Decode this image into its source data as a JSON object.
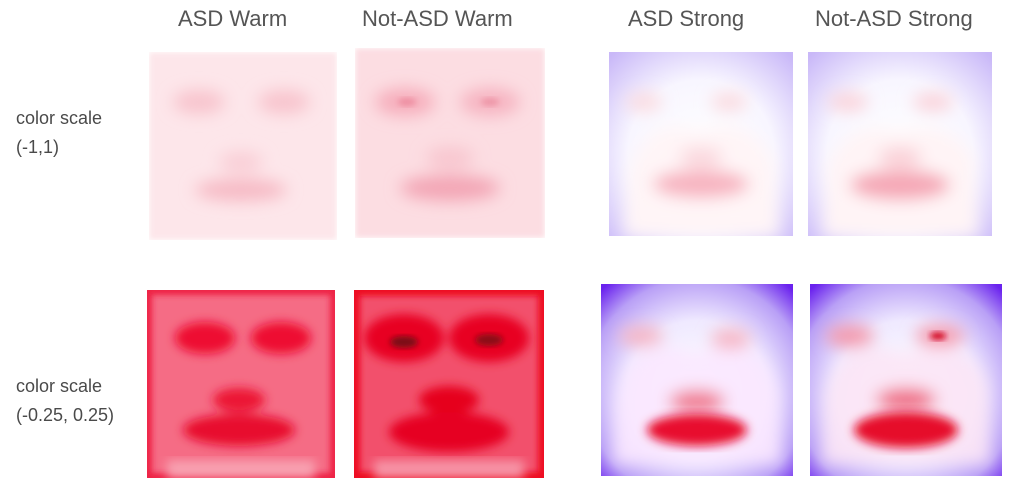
{
  "columns": [
    {
      "key": "asd_warm",
      "label": "ASD Warm"
    },
    {
      "key": "not_asd_warm",
      "label": "Not-ASD Warm"
    },
    {
      "key": "asd_strong",
      "label": "ASD Strong"
    },
    {
      "key": "not_asd_strong",
      "label": "Not-ASD Strong"
    }
  ],
  "rows": [
    {
      "line1": "color scale",
      "line2": "(-1,1)",
      "scale": [
        -1,
        1
      ]
    },
    {
      "line1": "color scale",
      "line2": "(-0.25, 0.25)",
      "scale": [
        -0.25,
        0.25
      ]
    }
  ],
  "colors": {
    "positive": "#ff0022",
    "negative": "#5a10f0",
    "neutral": "#ffffff",
    "text": "#555555"
  }
}
